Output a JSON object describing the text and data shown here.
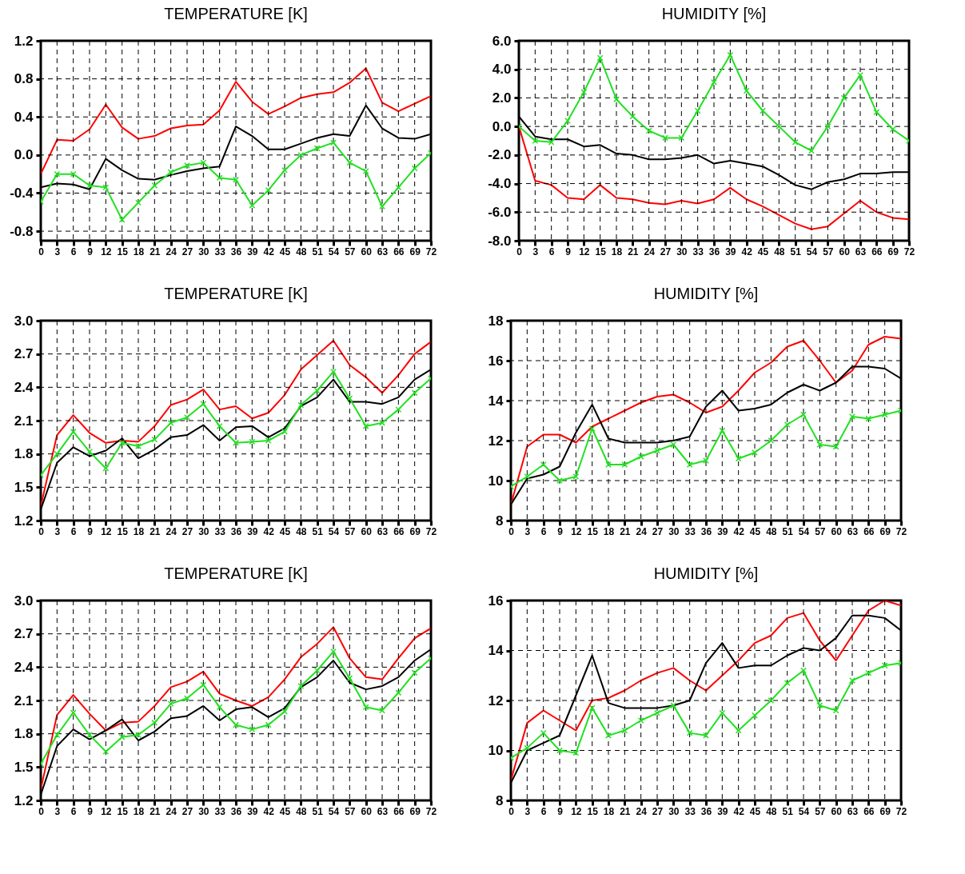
{
  "chart_data": [
    {
      "type": "line",
      "title": "TEMPERATURE [K]",
      "x": [
        0,
        3,
        6,
        9,
        12,
        15,
        18,
        21,
        24,
        27,
        30,
        33,
        36,
        39,
        42,
        45,
        48,
        51,
        54,
        57,
        60,
        63,
        66,
        69,
        72
      ],
      "xlim": [
        0,
        72
      ],
      "xticks": [
        0,
        3,
        6,
        9,
        12,
        15,
        18,
        21,
        24,
        27,
        30,
        33,
        36,
        39,
        42,
        45,
        48,
        51,
        54,
        57,
        60,
        63,
        66,
        69,
        72
      ],
      "ylim": [
        -0.9,
        1.2
      ],
      "yticks": [
        -0.8,
        -0.4,
        {
          "value": 0,
          "label": "0.0"
        },
        0.4,
        0.8,
        1.2
      ],
      "grid": true,
      "series": [
        {
          "color": "#ff0000",
          "values": [
            -0.2,
            0.16,
            0.15,
            0.27,
            0.53,
            0.29,
            0.17,
            0.2,
            0.28,
            0.31,
            0.32,
            0.47,
            0.77,
            0.56,
            0.43,
            0.51,
            0.6,
            0.64,
            0.66,
            0.76,
            0.91,
            0.55,
            0.46,
            0.54,
            0.62
          ]
        },
        {
          "color": "#000000",
          "values": [
            -0.34,
            -0.3,
            -0.31,
            -0.36,
            -0.04,
            -0.16,
            -0.25,
            -0.26,
            -0.21,
            -0.17,
            -0.14,
            -0.12,
            0.3,
            0.2,
            0.06,
            0.06,
            0.12,
            0.18,
            0.22,
            0.2,
            0.52,
            0.28,
            0.18,
            0.17,
            0.22
          ]
        },
        {
          "color": "#22e022",
          "marker": "cross",
          "values": [
            -0.49,
            -0.2,
            -0.2,
            -0.32,
            -0.34,
            -0.68,
            -0.5,
            -0.32,
            -0.18,
            -0.11,
            -0.08,
            -0.24,
            -0.26,
            -0.53,
            -0.37,
            -0.16,
            0.0,
            0.07,
            0.13,
            -0.08,
            -0.17,
            -0.54,
            -0.34,
            -0.14,
            0.02
          ]
        }
      ]
    },
    {
      "type": "line",
      "title": "HUMIDITY [%]",
      "x": [
        0,
        3,
        6,
        9,
        12,
        15,
        18,
        21,
        24,
        27,
        30,
        33,
        36,
        39,
        42,
        45,
        48,
        51,
        54,
        57,
        60,
        63,
        66,
        69,
        72
      ],
      "xlim": [
        0,
        72
      ],
      "xticks": [
        0,
        3,
        6,
        9,
        12,
        15,
        18,
        21,
        24,
        27,
        30,
        33,
        36,
        39,
        42,
        45,
        48,
        51,
        54,
        57,
        60,
        63,
        66,
        69,
        72
      ],
      "ylim": [
        -8,
        6
      ],
      "yticks": [
        {
          "value": -8,
          "label": "-8.0"
        },
        {
          "value": -6,
          "label": "-6.0"
        },
        {
          "value": -4,
          "label": "-4.0"
        },
        {
          "value": -2,
          "label": "-2.0"
        },
        {
          "value": 0,
          "label": "0.0"
        },
        {
          "value": 2,
          "label": "2.0"
        },
        {
          "value": 4,
          "label": "4.0"
        },
        {
          "value": 6,
          "label": "6.0"
        }
      ],
      "grid": true,
      "series": [
        {
          "color": "#ff0000",
          "values": [
            0,
            -3.8,
            -4.1,
            -5.0,
            -5.1,
            -4.1,
            -5.0,
            -5.1,
            -5.35,
            -5.45,
            -5.2,
            -5.4,
            -5.1,
            -4.3,
            -5.1,
            -5.6,
            -6.2,
            -6.8,
            -7.2,
            -7.0,
            -6.1,
            -5.2,
            -6.0,
            -6.4,
            -6.5
          ]
        },
        {
          "color": "#000000",
          "values": [
            0.7,
            -0.7,
            -0.9,
            -0.9,
            -1.4,
            -1.3,
            -1.9,
            -2.0,
            -2.3,
            -2.3,
            -2.2,
            -2.0,
            -2.6,
            -2.4,
            -2.6,
            -2.8,
            -3.4,
            -4.1,
            -4.4,
            -3.9,
            -3.7,
            -3.3,
            -3.3,
            -3.2,
            -3.2
          ]
        },
        {
          "color": "#22e022",
          "marker": "cross",
          "values": [
            0.0,
            -1.0,
            -1.1,
            0.4,
            2.4,
            4.8,
            1.9,
            0.7,
            -0.3,
            -0.8,
            -0.8,
            1.1,
            3.1,
            5.0,
            2.5,
            1.1,
            0.0,
            -1.1,
            -1.7,
            0.0,
            2.0,
            3.6,
            1.0,
            -0.2,
            -1.0
          ]
        }
      ]
    },
    {
      "type": "line",
      "title": "TEMPERATURE [K]",
      "x": [
        0,
        3,
        6,
        9,
        12,
        15,
        18,
        21,
        24,
        27,
        30,
        33,
        36,
        39,
        42,
        45,
        48,
        51,
        54,
        57,
        60,
        63,
        66,
        69,
        72
      ],
      "xlim": [
        0,
        72
      ],
      "xticks": [
        0,
        3,
        6,
        9,
        12,
        15,
        18,
        21,
        24,
        27,
        30,
        33,
        36,
        39,
        42,
        45,
        48,
        51,
        54,
        57,
        60,
        63,
        66,
        69,
        72
      ],
      "ylim": [
        1.2,
        3.0
      ],
      "yticks": [
        1.2,
        1.5,
        1.8,
        2.1,
        2.4,
        2.7,
        {
          "value": 3,
          "label": "3.0"
        }
      ],
      "grid": true,
      "series": [
        {
          "color": "#ff0000",
          "values": [
            1.33,
            1.97,
            2.15,
            1.99,
            1.9,
            1.92,
            1.91,
            2.05,
            2.24,
            2.29,
            2.38,
            2.2,
            2.23,
            2.12,
            2.17,
            2.33,
            2.56,
            2.69,
            2.82,
            2.6,
            2.49,
            2.35,
            2.51,
            2.7,
            2.81
          ]
        },
        {
          "color": "#000000",
          "values": [
            1.3,
            1.72,
            1.86,
            1.78,
            1.83,
            1.94,
            1.76,
            1.84,
            1.95,
            1.97,
            2.06,
            1.92,
            2.04,
            2.05,
            1.95,
            2.03,
            2.23,
            2.31,
            2.47,
            2.27,
            2.27,
            2.25,
            2.31,
            2.47,
            2.56
          ]
        },
        {
          "color": "#22e022",
          "marker": "cross",
          "values": [
            1.61,
            1.8,
            2.0,
            1.82,
            1.67,
            1.9,
            1.87,
            1.93,
            2.08,
            2.13,
            2.25,
            2.05,
            1.9,
            1.91,
            1.92,
            2.0,
            2.24,
            2.37,
            2.54,
            2.3,
            2.05,
            2.08,
            2.2,
            2.35,
            2.48
          ]
        }
      ]
    },
    {
      "type": "line",
      "title": "HUMIDITY [%]",
      "x": [
        0,
        3,
        6,
        9,
        12,
        15,
        18,
        21,
        24,
        27,
        30,
        33,
        36,
        39,
        42,
        45,
        48,
        51,
        54,
        57,
        60,
        63,
        66,
        69,
        72
      ],
      "xlim": [
        0,
        72
      ],
      "xticks": [
        0,
        3,
        6,
        9,
        12,
        15,
        18,
        21,
        24,
        27,
        30,
        33,
        36,
        39,
        42,
        45,
        48,
        51,
        54,
        57,
        60,
        63,
        66,
        69,
        72
      ],
      "ylim": [
        8,
        18
      ],
      "yticks": [
        8,
        10,
        12,
        14,
        16,
        18
      ],
      "grid": true,
      "series": [
        {
          "color": "#ff0000",
          "values": [
            8.8,
            11.7,
            12.3,
            12.3,
            11.9,
            12.7,
            13.1,
            13.5,
            13.9,
            14.2,
            14.3,
            13.9,
            13.4,
            13.7,
            14.5,
            15.4,
            15.9,
            16.7,
            17.0,
            16.0,
            14.9,
            15.5,
            16.8,
            17.2,
            17.1
          ]
        },
        {
          "color": "#000000",
          "values": [
            8.8,
            10.1,
            10.3,
            10.7,
            12.4,
            13.8,
            12.1,
            11.9,
            11.9,
            11.9,
            12.0,
            12.2,
            13.7,
            14.5,
            13.5,
            13.6,
            13.8,
            14.4,
            14.8,
            14.5,
            14.9,
            15.7,
            15.7,
            15.6,
            15.1
          ]
        },
        {
          "color": "#22e022",
          "marker": "cross",
          "values": [
            9.7,
            10.2,
            10.8,
            10.0,
            10.2,
            12.6,
            10.8,
            10.8,
            11.2,
            11.5,
            11.8,
            10.8,
            11.0,
            12.5,
            11.1,
            11.4,
            12.0,
            12.8,
            13.3,
            11.8,
            11.7,
            13.2,
            13.1,
            13.3,
            13.5
          ]
        }
      ]
    },
    {
      "type": "line",
      "title": "TEMPERATURE [K]",
      "x": [
        0,
        3,
        6,
        9,
        12,
        15,
        18,
        21,
        24,
        27,
        30,
        33,
        36,
        39,
        42,
        45,
        48,
        51,
        54,
        57,
        60,
        63,
        66,
        69,
        72
      ],
      "xlim": [
        0,
        72
      ],
      "xticks": [
        0,
        3,
        6,
        9,
        12,
        15,
        18,
        21,
        24,
        27,
        30,
        33,
        36,
        39,
        42,
        45,
        48,
        51,
        54,
        57,
        60,
        63,
        66,
        69,
        72
      ],
      "ylim": [
        1.2,
        3.0
      ],
      "yticks": [
        1.2,
        1.5,
        1.8,
        2.1,
        2.4,
        2.7,
        {
          "value": 3,
          "label": "3.0"
        }
      ],
      "grid": true,
      "series": [
        {
          "color": "#ff0000",
          "values": [
            1.3,
            1.97,
            2.15,
            1.98,
            1.83,
            1.9,
            1.91,
            2.05,
            2.22,
            2.27,
            2.36,
            2.16,
            2.1,
            2.05,
            2.13,
            2.29,
            2.49,
            2.61,
            2.76,
            2.48,
            2.31,
            2.29,
            2.48,
            2.66,
            2.75
          ]
        },
        {
          "color": "#000000",
          "values": [
            1.25,
            1.69,
            1.84,
            1.75,
            1.83,
            1.93,
            1.74,
            1.82,
            1.94,
            1.96,
            2.05,
            1.92,
            2.02,
            2.04,
            1.95,
            2.03,
            2.22,
            2.31,
            2.46,
            2.26,
            2.2,
            2.23,
            2.31,
            2.46,
            2.56
          ]
        },
        {
          "color": "#22e022",
          "marker": "cross",
          "values": [
            1.53,
            1.79,
            1.99,
            1.79,
            1.64,
            1.77,
            1.79,
            1.9,
            2.07,
            2.12,
            2.24,
            2.04,
            1.88,
            1.84,
            1.88,
            2.0,
            2.23,
            2.37,
            2.54,
            2.3,
            2.04,
            2.01,
            2.17,
            2.35,
            2.48
          ]
        }
      ]
    },
    {
      "type": "line",
      "title": "HUMIDITY [%]",
      "x": [
        0,
        3,
        6,
        9,
        12,
        15,
        18,
        21,
        24,
        27,
        30,
        33,
        36,
        39,
        42,
        45,
        48,
        51,
        54,
        57,
        60,
        63,
        66,
        69,
        72
      ],
      "xlim": [
        0,
        72
      ],
      "xticks": [
        0,
        3,
        6,
        9,
        12,
        15,
        18,
        21,
        24,
        27,
        30,
        33,
        36,
        39,
        42,
        45,
        48,
        51,
        54,
        57,
        60,
        63,
        66,
        69,
        72
      ],
      "ylim": [
        8,
        16
      ],
      "yticks": [
        8,
        10,
        12,
        14,
        16
      ],
      "grid": true,
      "series": [
        {
          "color": "#ff0000",
          "values": [
            8.8,
            11.1,
            11.6,
            11.2,
            10.8,
            12.0,
            12.1,
            12.4,
            12.8,
            13.1,
            13.3,
            12.8,
            12.4,
            13.0,
            13.6,
            14.3,
            14.6,
            15.3,
            15.5,
            14.4,
            13.6,
            14.6,
            15.6,
            16.0,
            15.8
          ]
        },
        {
          "color": "#000000",
          "values": [
            8.7,
            10.0,
            10.3,
            10.6,
            12.2,
            13.8,
            11.9,
            11.7,
            11.7,
            11.7,
            11.8,
            12.0,
            13.5,
            14.3,
            13.3,
            13.4,
            13.4,
            13.8,
            14.1,
            14.0,
            14.5,
            15.4,
            15.4,
            15.3,
            14.8
          ]
        },
        {
          "color": "#22e022",
          "marker": "cross",
          "values": [
            9.7,
            10.1,
            10.7,
            10.0,
            9.9,
            11.7,
            10.6,
            10.8,
            11.2,
            11.5,
            11.8,
            10.7,
            10.6,
            11.5,
            10.8,
            11.4,
            12.0,
            12.7,
            13.2,
            11.8,
            11.6,
            12.8,
            13.1,
            13.4,
            13.5
          ]
        }
      ]
    }
  ]
}
